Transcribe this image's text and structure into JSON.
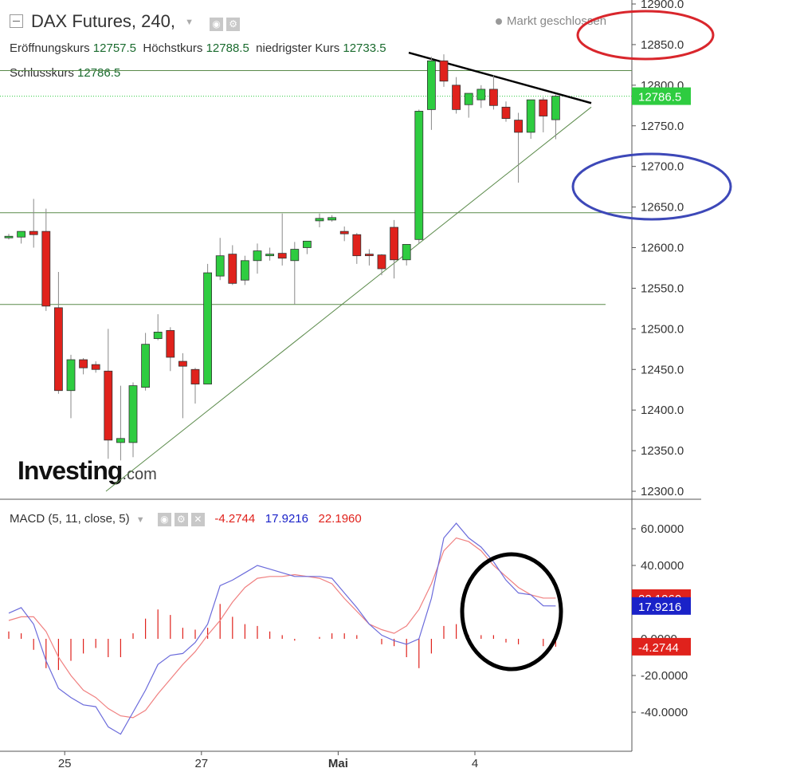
{
  "header": {
    "symbol_title": "DAX Futures, 240,",
    "open_label": "Eröffnungskurs",
    "open_value": "12757.5",
    "high_label": "Höchstkurs",
    "high_value": "12788.5",
    "low_label": "niedrigster Kurs",
    "low_value": "12733.5",
    "close_label": "Schlusskurs",
    "close_value": "12786.5",
    "market_status": "Markt geschlossen"
  },
  "logo": {
    "main": "Investing",
    "suffix": ".com"
  },
  "macd_header": {
    "label": "MACD (5, 11, close, 5)",
    "hist": "-4.2744",
    "macd": "17.9216",
    "signal": "22.1960"
  },
  "colors": {
    "up": "#2ecc40",
    "down": "#e0221c",
    "macd_line": "#6b6bdb",
    "signal_line": "#f08080",
    "current_price": "#2ecc40"
  },
  "chart_data": [
    {
      "type": "candlestick",
      "title": "DAX Futures, 240,",
      "ylim": [
        12285,
        12905
      ],
      "y_ticks": [
        "12900.0",
        "12850.0",
        "12800.0",
        "12750.0",
        "12700.0",
        "12650.0",
        "12600.0",
        "12550.0",
        "12500.0",
        "12450.0",
        "12400.0",
        "12350.0",
        "12300.0"
      ],
      "x_tick_labels": [
        {
          "label": "25",
          "index": 4.5
        },
        {
          "label": "27",
          "index": 15.5
        },
        {
          "label": "Mai",
          "index": 26.5
        },
        {
          "label": "4",
          "index": 37.5
        }
      ],
      "last_price": "12786.5",
      "candles": [
        {
          "o": 12614,
          "h": 12617,
          "l": 12610,
          "c": 12614
        },
        {
          "o": 12613,
          "h": 12618,
          "l": 12605,
          "c": 12620
        },
        {
          "o": 12620,
          "h": 12660,
          "l": 12600,
          "c": 12616
        },
        {
          "o": 12620,
          "h": 12648,
          "l": 12522,
          "c": 12528
        },
        {
          "o": 12526,
          "h": 12570,
          "l": 12420,
          "c": 12424
        },
        {
          "o": 12424,
          "h": 12468,
          "l": 12390,
          "c": 12462
        },
        {
          "o": 12462,
          "h": 12464,
          "l": 12444,
          "c": 12452
        },
        {
          "o": 12456,
          "h": 12460,
          "l": 12446,
          "c": 12450
        },
        {
          "o": 12448,
          "h": 12500,
          "l": 12340,
          "c": 12363
        },
        {
          "o": 12360,
          "h": 12430,
          "l": 12338,
          "c": 12365
        },
        {
          "o": 12360,
          "h": 12434,
          "l": 12342,
          "c": 12430
        },
        {
          "o": 12428,
          "h": 12495,
          "l": 12424,
          "c": 12481
        },
        {
          "o": 12488,
          "h": 12518,
          "l": 12486,
          "c": 12496
        },
        {
          "o": 12498,
          "h": 12502,
          "l": 12448,
          "c": 12465
        },
        {
          "o": 12460,
          "h": 12470,
          "l": 12390,
          "c": 12454
        },
        {
          "o": 12450,
          "h": 12452,
          "l": 12408,
          "c": 12432
        },
        {
          "o": 12432,
          "h": 12580,
          "l": 12432,
          "c": 12569
        },
        {
          "o": 12565,
          "h": 12612,
          "l": 12560,
          "c": 12590
        },
        {
          "o": 12592,
          "h": 12603,
          "l": 12554,
          "c": 12556
        },
        {
          "o": 12560,
          "h": 12590,
          "l": 12554,
          "c": 12584
        },
        {
          "o": 12584,
          "h": 12605,
          "l": 12568,
          "c": 12596
        },
        {
          "o": 12590,
          "h": 12600,
          "l": 12584,
          "c": 12592
        },
        {
          "o": 12593,
          "h": 12642,
          "l": 12578,
          "c": 12587
        },
        {
          "o": 12584,
          "h": 12607,
          "l": 12530,
          "c": 12598
        },
        {
          "o": 12600,
          "h": 12608,
          "l": 12592,
          "c": 12608
        },
        {
          "o": 12633,
          "h": 12642,
          "l": 12625,
          "c": 12636
        },
        {
          "o": 12634,
          "h": 12640,
          "l": 12632,
          "c": 12637
        },
        {
          "o": 12620,
          "h": 12626,
          "l": 12608,
          "c": 12617
        },
        {
          "o": 12616,
          "h": 12618,
          "l": 12580,
          "c": 12590
        },
        {
          "o": 12592,
          "h": 12598,
          "l": 12578,
          "c": 12591
        },
        {
          "o": 12591,
          "h": 12592,
          "l": 12566,
          "c": 12574
        },
        {
          "o": 12625,
          "h": 12634,
          "l": 12562,
          "c": 12585
        },
        {
          "o": 12585,
          "h": 12600,
          "l": 12578,
          "c": 12604
        },
        {
          "o": 12610,
          "h": 12770,
          "l": 12605,
          "c": 12768
        },
        {
          "o": 12770,
          "h": 12835,
          "l": 12745,
          "c": 12830
        },
        {
          "o": 12830,
          "h": 12838,
          "l": 12798,
          "c": 12805
        },
        {
          "o": 12800,
          "h": 12810,
          "l": 12765,
          "c": 12770
        },
        {
          "o": 12776,
          "h": 12790,
          "l": 12760,
          "c": 12790
        },
        {
          "o": 12782,
          "h": 12800,
          "l": 12772,
          "c": 12795
        },
        {
          "o": 12795,
          "h": 12812,
          "l": 12770,
          "c": 12775
        },
        {
          "o": 12773,
          "h": 12780,
          "l": 12755,
          "c": 12759
        },
        {
          "o": 12757,
          "h": 12766,
          "l": 12680,
          "c": 12742
        },
        {
          "o": 12742,
          "h": 12782,
          "l": 12734,
          "c": 12782
        },
        {
          "o": 12782,
          "h": 12785,
          "l": 12742,
          "c": 12762
        },
        {
          "o": 12757.5,
          "h": 12788.5,
          "l": 12733.5,
          "c": 12786.5
        }
      ]
    },
    {
      "type": "line",
      "title": "MACD (5, 11, close, 5)",
      "ylim": [
        -55,
        68
      ],
      "y_ticks": [
        "60.0000",
        "40.0000",
        "0.0000",
        "-20.0000",
        "-40.0000"
      ],
      "series": [
        {
          "name": "MACD",
          "values": [
            14,
            17,
            8,
            -12,
            -27,
            -32,
            -36,
            -37,
            -48,
            -52,
            -40,
            -28,
            -14,
            -9,
            -8,
            -2,
            8,
            29,
            32,
            36,
            40,
            38,
            36,
            34,
            34,
            34,
            33,
            25,
            17,
            8,
            2,
            -1,
            -3,
            0,
            22,
            55,
            63,
            55,
            50,
            42,
            32,
            25,
            24,
            18,
            17.9
          ]
        },
        {
          "name": "Signal",
          "values": [
            10,
            12,
            12,
            4,
            -10,
            -20,
            -28,
            -32,
            -38,
            -42,
            -43,
            -39,
            -30,
            -22,
            -14,
            -7,
            2,
            10,
            20,
            28,
            33,
            34,
            34,
            35,
            34,
            33,
            30,
            22,
            15,
            8,
            5,
            3,
            7,
            16,
            30,
            48,
            55,
            53,
            48,
            40,
            34,
            28,
            24,
            22.2,
            22.2
          ]
        },
        {
          "name": "Histogram",
          "values": [
            4,
            3,
            -6,
            -16,
            -17,
            -12,
            -8,
            -5,
            -10,
            -10,
            3,
            11,
            16,
            13,
            6,
            5,
            6,
            19,
            12,
            8,
            7,
            4,
            2,
            -1,
            0,
            1,
            3,
            3,
            2,
            0,
            -3,
            -4,
            -10,
            -16,
            -8,
            7,
            8,
            2,
            2,
            2,
            -2,
            -3,
            0,
            -4,
            -4.3
          ]
        }
      ]
    }
  ]
}
